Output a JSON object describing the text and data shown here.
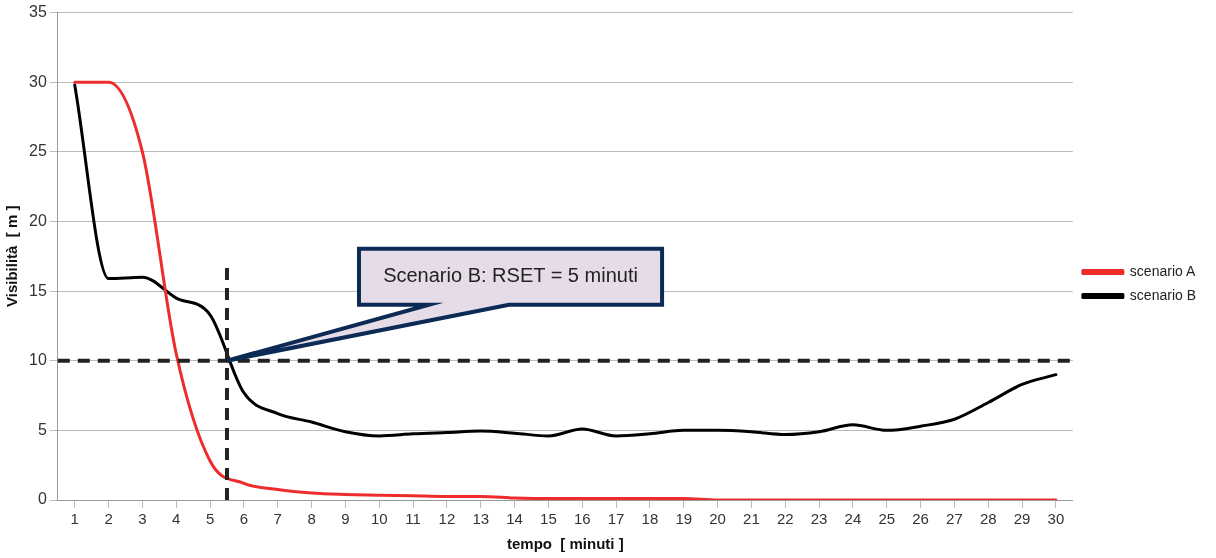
{
  "chart_data": {
    "type": "line",
    "xlabel": "tempo  [ minuti ]",
    "ylabel": "Visibilità  [ m ]",
    "x": [
      1,
      2,
      3,
      4,
      5,
      6,
      7,
      8,
      9,
      10,
      11,
      12,
      13,
      14,
      15,
      16,
      17,
      18,
      19,
      20,
      21,
      22,
      23,
      24,
      25,
      26,
      27,
      28,
      29,
      30
    ],
    "series": [
      {
        "name": "scenario A",
        "color": "#ee2c2c",
        "values": [
          30,
          30,
          25,
          10.5,
          2.8,
          1.2,
          0.75,
          0.5,
          0.4,
          0.35,
          0.3,
          0.25,
          0.25,
          0.15,
          0.1,
          0.1,
          0.1,
          0.1,
          0.1,
          0,
          0,
          0,
          0,
          0,
          0,
          0,
          0,
          0,
          0,
          0
        ]
      },
      {
        "name": "scenario B",
        "color": "#000000",
        "values": [
          29.8,
          15.9,
          16,
          14.5,
          13.3,
          7.7,
          6.2,
          5.6,
          4.9,
          4.6,
          4.75,
          4.85,
          4.95,
          4.8,
          4.6,
          5.1,
          4.6,
          4.75,
          5,
          5,
          4.9,
          4.7,
          4.9,
          5.4,
          5,
          5.3,
          5.8,
          7,
          8.3,
          9
        ]
      }
    ],
    "xlim": [
      0.5,
      30.5
    ],
    "xticks": [
      1,
      2,
      3,
      4,
      5,
      6,
      7,
      8,
      9,
      10,
      11,
      12,
      13,
      14,
      15,
      16,
      17,
      18,
      19,
      20,
      21,
      22,
      23,
      24,
      25,
      26,
      27,
      28,
      29,
      30
    ],
    "ylim": [
      0,
      35
    ],
    "yticks": [
      0,
      5,
      10,
      15,
      20,
      25,
      30,
      35
    ],
    "grid": "y",
    "legend": "right",
    "marker": "none",
    "line_style": "solid",
    "ref_lines": [
      {
        "axis": "x",
        "value": 5.5,
        "color": "#222222",
        "line_style": "dashed"
      },
      {
        "axis": "y",
        "value": 10,
        "color": "#222222",
        "line_style": "dashed"
      }
    ],
    "annotations": [
      "Scenario B: RSET = 5 minuti"
    ]
  }
}
